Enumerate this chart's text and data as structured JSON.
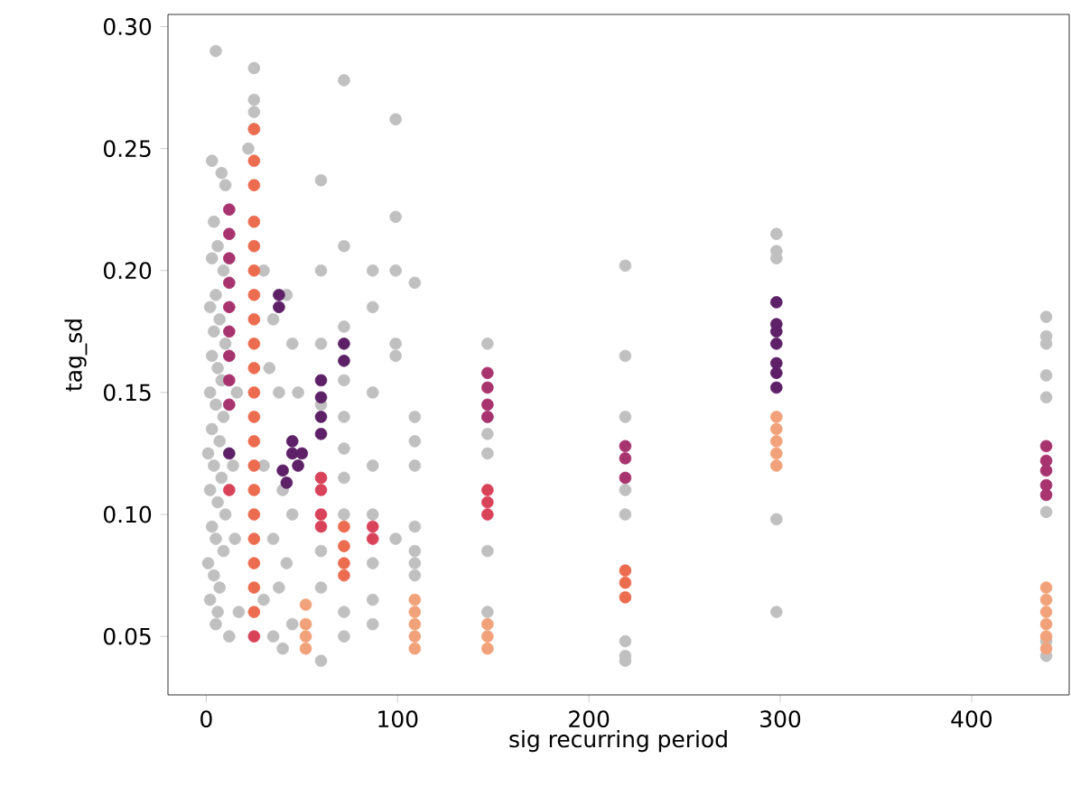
{
  "chart_data": {
    "type": "scatter",
    "xlabel": "sig recurring period",
    "ylabel": "tag_sd",
    "xlim": [
      -20,
      451
    ],
    "ylim": [
      0.026,
      0.305
    ],
    "xticks": [
      0,
      100,
      200,
      300,
      400
    ],
    "yticks": [
      {
        "value": 0.05,
        "label": "0.05"
      },
      {
        "value": 0.1,
        "label": "0.10"
      },
      {
        "value": 0.15,
        "label": "0.15"
      },
      {
        "value": 0.2,
        "label": "0.20"
      },
      {
        "value": 0.25,
        "label": "0.25"
      },
      {
        "value": 0.3,
        "label": "0.30"
      }
    ],
    "grid": false,
    "series": [
      {
        "color": "#c0c0c0",
        "x": [
          5,
          3,
          8,
          10,
          4,
          6,
          3,
          9,
          5,
          2,
          7,
          4,
          10,
          3,
          6,
          8,
          2,
          5,
          9,
          3,
          7,
          1,
          4,
          8,
          2,
          6,
          10,
          3,
          5,
          9,
          1,
          4,
          7,
          2,
          6,
          5,
          12,
          15,
          14,
          17,
          16,
          25,
          25,
          25,
          25,
          22,
          30,
          35,
          42,
          45,
          33,
          38,
          48,
          30,
          40,
          45,
          35,
          42,
          38,
          30,
          45,
          35,
          40,
          60,
          60,
          60,
          60,
          60,
          60,
          60,
          72,
          72,
          72,
          72,
          72,
          72,
          72,
          72,
          72,
          72,
          87,
          87,
          87,
          87,
          87,
          87,
          87,
          87,
          99,
          99,
          99,
          99,
          99,
          99,
          109,
          109,
          109,
          109,
          109,
          109,
          109,
          109,
          147,
          147,
          147,
          147,
          147,
          147,
          219,
          219,
          219,
          219,
          219,
          219,
          219,
          219,
          298,
          298,
          298,
          298,
          298,
          439,
          439,
          439,
          439,
          439,
          439,
          439,
          439
        ],
        "values": [
          0.29,
          0.245,
          0.24,
          0.235,
          0.22,
          0.21,
          0.205,
          0.2,
          0.19,
          0.185,
          0.18,
          0.175,
          0.17,
          0.165,
          0.16,
          0.155,
          0.15,
          0.145,
          0.14,
          0.135,
          0.13,
          0.125,
          0.12,
          0.115,
          0.11,
          0.105,
          0.1,
          0.095,
          0.09,
          0.085,
          0.08,
          0.075,
          0.07,
          0.065,
          0.06,
          0.055,
          0.05,
          0.09,
          0.12,
          0.06,
          0.15,
          0.283,
          0.27,
          0.265,
          0.258,
          0.25,
          0.2,
          0.18,
          0.19,
          0.17,
          0.16,
          0.15,
          0.15,
          0.12,
          0.11,
          0.1,
          0.09,
          0.08,
          0.07,
          0.065,
          0.055,
          0.05,
          0.045,
          0.237,
          0.2,
          0.17,
          0.145,
          0.085,
          0.07,
          0.04,
          0.278,
          0.21,
          0.177,
          0.155,
          0.14,
          0.127,
          0.115,
          0.1,
          0.06,
          0.05,
          0.2,
          0.185,
          0.15,
          0.12,
          0.1,
          0.08,
          0.065,
          0.055,
          0.262,
          0.222,
          0.2,
          0.17,
          0.165,
          0.09,
          0.195,
          0.14,
          0.13,
          0.12,
          0.095,
          0.085,
          0.08,
          0.075,
          0.17,
          0.14,
          0.133,
          0.125,
          0.085,
          0.06,
          0.202,
          0.165,
          0.14,
          0.11,
          0.1,
          0.048,
          0.042,
          0.04,
          0.215,
          0.208,
          0.205,
          0.098,
          0.06,
          0.181,
          0.173,
          0.17,
          0.157,
          0.148,
          0.101,
          0.048,
          0.042
        ]
      },
      {
        "color": "#5e2168",
        "x": [
          38,
          38,
          72,
          72,
          60,
          60,
          60,
          60,
          45,
          45,
          48,
          40,
          42,
          50,
          12,
          298,
          298,
          298,
          298,
          298,
          298,
          298
        ],
        "values": [
          0.19,
          0.185,
          0.17,
          0.163,
          0.155,
          0.148,
          0.14,
          0.133,
          0.13,
          0.125,
          0.12,
          0.118,
          0.113,
          0.125,
          0.125,
          0.187,
          0.178,
          0.175,
          0.17,
          0.162,
          0.158,
          0.152
        ]
      },
      {
        "color": "#a8346f",
        "x": [
          12,
          12,
          12,
          12,
          12,
          12,
          12,
          12,
          12,
          147,
          147,
          147,
          147,
          219,
          219,
          219,
          439,
          439,
          439,
          439,
          439
        ],
        "values": [
          0.225,
          0.215,
          0.205,
          0.195,
          0.185,
          0.175,
          0.165,
          0.155,
          0.145,
          0.158,
          0.152,
          0.145,
          0.14,
          0.128,
          0.123,
          0.115,
          0.128,
          0.122,
          0.118,
          0.112,
          0.108
        ]
      },
      {
        "color": "#d9435a",
        "x": [
          60,
          60,
          60,
          60,
          87,
          87,
          147,
          147,
          147,
          12,
          25
        ],
        "values": [
          0.115,
          0.11,
          0.1,
          0.095,
          0.095,
          0.09,
          0.11,
          0.105,
          0.1,
          0.11,
          0.05
        ]
      },
      {
        "color": "#ec6c50",
        "x": [
          25,
          25,
          25,
          25,
          25,
          25,
          25,
          25,
          25,
          25,
          25,
          25,
          25,
          25,
          25,
          25,
          25,
          25,
          25,
          25,
          72,
          72,
          72,
          72,
          219,
          219,
          219
        ],
        "values": [
          0.258,
          0.245,
          0.235,
          0.22,
          0.21,
          0.2,
          0.19,
          0.18,
          0.17,
          0.16,
          0.15,
          0.14,
          0.13,
          0.12,
          0.11,
          0.1,
          0.09,
          0.08,
          0.07,
          0.06,
          0.095,
          0.087,
          0.08,
          0.075,
          0.077,
          0.072,
          0.066
        ]
      },
      {
        "color": "#f2a27a",
        "x": [
          52,
          52,
          52,
          52,
          109,
          109,
          109,
          109,
          109,
          147,
          147,
          147,
          298,
          298,
          298,
          298,
          298,
          439,
          439,
          439,
          439,
          439,
          439
        ],
        "values": [
          0.063,
          0.055,
          0.05,
          0.045,
          0.065,
          0.06,
          0.055,
          0.05,
          0.045,
          0.055,
          0.05,
          0.045,
          0.14,
          0.135,
          0.13,
          0.125,
          0.12,
          0.07,
          0.065,
          0.06,
          0.055,
          0.05,
          0.045
        ]
      }
    ]
  }
}
